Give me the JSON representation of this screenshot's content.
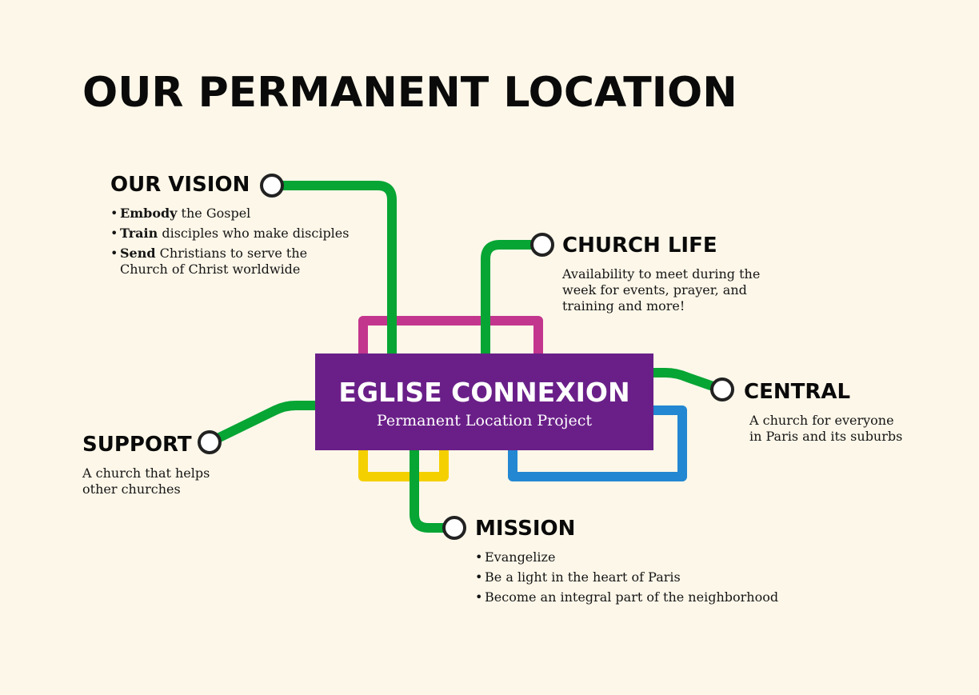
{
  "title": "OUR PERMANENT LOCATION",
  "colors": {
    "green": "#06a534",
    "magenta": "#c3368e",
    "yellow": "#f5d000",
    "blue": "#2387d2",
    "purple": "#6a1f88",
    "background": "#fdf7e9"
  },
  "center": {
    "title": "EGLISE CONNEXION",
    "subtitle": "Permanent Location Project"
  },
  "vision": {
    "heading": "OUR VISION",
    "items": [
      {
        "bold": "Embody",
        "rest": " the Gospel"
      },
      {
        "bold": "Train",
        "rest": " disciples who make disciples"
      },
      {
        "bold": "Send",
        "rest": " Christians to serve the Church of Christ worldwide"
      }
    ]
  },
  "church_life": {
    "heading": "CHURCH LIFE",
    "text": "Availability to meet during the week for events, prayer, and training and more!"
  },
  "central": {
    "heading": "CENTRAL",
    "text": "A church for everyone in Paris and its suburbs"
  },
  "support": {
    "heading": "SUPPORT",
    "text": "A church that helps other churches"
  },
  "mission": {
    "heading": "MISSION",
    "items": [
      "Evangelize",
      "Be a light in the heart of Paris",
      "Become an integral part of the neighborhood"
    ]
  }
}
